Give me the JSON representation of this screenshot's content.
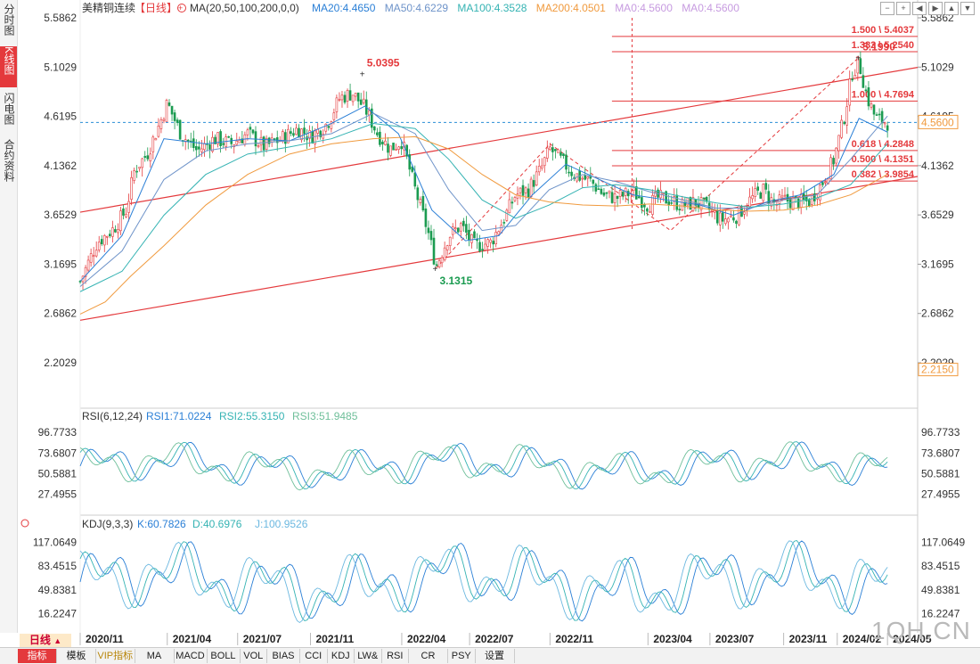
{
  "sidebar": {
    "tabs": [
      {
        "label": "分时图",
        "active": false
      },
      {
        "label": "K线图",
        "active": true
      },
      {
        "label": "闪电图",
        "active": false
      },
      {
        "label": "合约资料",
        "active": false
      }
    ]
  },
  "header": {
    "symbol": "美精铜连续",
    "period": "【日线】",
    "add_icon": "circle-plus-icon",
    "ma_label": "MA(20,50,100,200,0,0)",
    "ma20": "MA20:4.4650",
    "ma50": "MA50:4.6229",
    "ma100": "MA100:4.3528",
    "ma200": "MA200:4.0501",
    "ma0a": "MA0:4.5600",
    "ma0b": "MA0:4.5600"
  },
  "nav": {
    "buttons": [
      "minus",
      "plus",
      "left",
      "right",
      "up",
      "down"
    ]
  },
  "period_selector": {
    "label": "日线",
    "arrow": "▲"
  },
  "bottom_tabs": [
    "指标",
    "模板",
    "VIP指标",
    "MA",
    "MACD",
    "BOLL",
    "VOL",
    "BIAS",
    "CCI",
    "KDJ",
    "LW&",
    "RSI",
    "CR",
    "PSY",
    "设置"
  ],
  "watermark": "1QH.CN",
  "colors": {
    "up": "#e4393c",
    "down": "#1a9b50",
    "ma20": "#2a7fd6",
    "ma50": "#6e93c9",
    "ma100": "#35b3b3",
    "ma200": "#f09a3e",
    "channel": "#e4393c",
    "fib": "#e4393c",
    "rsi1": "#2a7fd6",
    "rsi2": "#35b3b3",
    "rsi3": "#6fbf9a",
    "k": "#2a7fd6",
    "d": "#35b3b3",
    "j": "#6cb8e0"
  },
  "chart_data": {
    "type": "candlestick",
    "price_ticks": [
      5.5862,
      5.1029,
      4.6195,
      4.1362,
      3.6529,
      3.1695,
      2.6862,
      2.2029
    ],
    "price_tick_labels": [
      "5.5862",
      "5.1029",
      "4.6195",
      "4.1362",
      "3.6529",
      "3.1695",
      "2.6862",
      "2.2029"
    ],
    "ylim": [
      2.2029,
      5.5862
    ],
    "x_labels": [
      "2020/11",
      "2021/04",
      "2021/07",
      "2021/11",
      "2022/04",
      "2022/07",
      "2022/11",
      "2023/04",
      "2023/07",
      "2023/11",
      "2024/02",
      "2024/05"
    ],
    "x_label_fraction": [
      0.0,
      0.104,
      0.188,
      0.275,
      0.384,
      0.465,
      0.561,
      0.678,
      0.752,
      0.84,
      0.904,
      0.964
    ],
    "last_price": 4.56,
    "last_price_label": "4.5600",
    "low_marker": 2.215,
    "low_marker_label": "2.2150",
    "close_path": [
      [
        0,
        3.0
      ],
      [
        0.02,
        3.38
      ],
      [
        0.04,
        3.52
      ],
      [
        0.055,
        3.7
      ],
      [
        0.065,
        4.1
      ],
      [
        0.08,
        4.25
      ],
      [
        0.095,
        4.55
      ],
      [
        0.104,
        4.75
      ],
      [
        0.12,
        4.45
      ],
      [
        0.14,
        4.28
      ],
      [
        0.16,
        4.4
      ],
      [
        0.18,
        4.35
      ],
      [
        0.2,
        4.45
      ],
      [
        0.22,
        4.32
      ],
      [
        0.24,
        4.4
      ],
      [
        0.26,
        4.5
      ],
      [
        0.275,
        4.42
      ],
      [
        0.295,
        4.55
      ],
      [
        0.31,
        4.8
      ],
      [
        0.325,
        4.85
      ],
      [
        0.34,
        4.7
      ],
      [
        0.355,
        4.45
      ],
      [
        0.37,
        4.3
      ],
      [
        0.384,
        4.38
      ],
      [
        0.4,
        3.9
      ],
      [
        0.415,
        3.5
      ],
      [
        0.425,
        3.15
      ],
      [
        0.44,
        3.45
      ],
      [
        0.455,
        3.55
      ],
      [
        0.47,
        3.35
      ],
      [
        0.49,
        3.38
      ],
      [
        0.505,
        3.6
      ],
      [
        0.52,
        3.85
      ],
      [
        0.535,
        3.9
      ],
      [
        0.55,
        4.1
      ],
      [
        0.561,
        4.3
      ],
      [
        0.575,
        4.18
      ],
      [
        0.59,
        4.05
      ],
      [
        0.61,
        3.98
      ],
      [
        0.625,
        3.85
      ],
      [
        0.64,
        3.82
      ],
      [
        0.66,
        3.88
      ],
      [
        0.678,
        3.75
      ],
      [
        0.69,
        3.82
      ],
      [
        0.705,
        3.8
      ],
      [
        0.72,
        3.74
      ],
      [
        0.735,
        3.78
      ],
      [
        0.752,
        3.7
      ],
      [
        0.765,
        3.6
      ],
      [
        0.785,
        3.65
      ],
      [
        0.8,
        3.8
      ],
      [
        0.815,
        3.9
      ],
      [
        0.83,
        3.75
      ],
      [
        0.84,
        3.8
      ],
      [
        0.855,
        3.78
      ],
      [
        0.87,
        3.78
      ],
      [
        0.885,
        3.95
      ],
      [
        0.9,
        4.2
      ],
      [
        0.912,
        4.6
      ],
      [
        0.922,
        5.05
      ],
      [
        0.93,
        5.15
      ],
      [
        0.94,
        4.8
      ],
      [
        0.95,
        4.6
      ],
      [
        0.964,
        4.56
      ]
    ],
    "ma_paths": {
      "ma20": [
        [
          0,
          3.0
        ],
        [
          0.05,
          3.45
        ],
        [
          0.1,
          4.4
        ],
        [
          0.15,
          4.35
        ],
        [
          0.2,
          4.4
        ],
        [
          0.25,
          4.38
        ],
        [
          0.3,
          4.55
        ],
        [
          0.34,
          4.72
        ],
        [
          0.38,
          4.45
        ],
        [
          0.42,
          3.7
        ],
        [
          0.46,
          3.4
        ],
        [
          0.5,
          3.45
        ],
        [
          0.54,
          3.85
        ],
        [
          0.58,
          4.15
        ],
        [
          0.62,
          4.0
        ],
        [
          0.66,
          3.85
        ],
        [
          0.7,
          3.8
        ],
        [
          0.74,
          3.75
        ],
        [
          0.78,
          3.65
        ],
        [
          0.82,
          3.78
        ],
        [
          0.86,
          3.85
        ],
        [
          0.9,
          4.05
        ],
        [
          0.93,
          4.6
        ],
        [
          0.964,
          4.465
        ]
      ],
      "ma50": [
        [
          0,
          2.95
        ],
        [
          0.05,
          3.3
        ],
        [
          0.1,
          4.0
        ],
        [
          0.15,
          4.28
        ],
        [
          0.2,
          4.35
        ],
        [
          0.25,
          4.38
        ],
        [
          0.3,
          4.45
        ],
        [
          0.35,
          4.65
        ],
        [
          0.4,
          4.45
        ],
        [
          0.44,
          3.9
        ],
        [
          0.48,
          3.5
        ],
        [
          0.52,
          3.55
        ],
        [
          0.56,
          3.9
        ],
        [
          0.6,
          4.05
        ],
        [
          0.64,
          3.98
        ],
        [
          0.68,
          3.88
        ],
        [
          0.72,
          3.8
        ],
        [
          0.76,
          3.72
        ],
        [
          0.8,
          3.72
        ],
        [
          0.84,
          3.8
        ],
        [
          0.88,
          3.85
        ],
        [
          0.92,
          4.2
        ],
        [
          0.964,
          4.6229
        ]
      ],
      "ma100": [
        [
          0,
          2.9
        ],
        [
          0.05,
          3.1
        ],
        [
          0.1,
          3.65
        ],
        [
          0.15,
          4.05
        ],
        [
          0.2,
          4.25
        ],
        [
          0.25,
          4.32
        ],
        [
          0.3,
          4.4
        ],
        [
          0.35,
          4.55
        ],
        [
          0.4,
          4.5
        ],
        [
          0.44,
          4.2
        ],
        [
          0.48,
          3.8
        ],
        [
          0.52,
          3.62
        ],
        [
          0.56,
          3.75
        ],
        [
          0.6,
          3.92
        ],
        [
          0.64,
          3.95
        ],
        [
          0.68,
          3.9
        ],
        [
          0.72,
          3.83
        ],
        [
          0.76,
          3.77
        ],
        [
          0.8,
          3.73
        ],
        [
          0.84,
          3.76
        ],
        [
          0.88,
          3.82
        ],
        [
          0.92,
          3.95
        ],
        [
          0.964,
          4.3528
        ]
      ],
      "ma200": [
        [
          0,
          2.68
        ],
        [
          0.03,
          2.8
        ],
        [
          0.06,
          3.05
        ],
        [
          0.1,
          3.35
        ],
        [
          0.15,
          3.75
        ],
        [
          0.2,
          4.05
        ],
        [
          0.25,
          4.25
        ],
        [
          0.3,
          4.35
        ],
        [
          0.35,
          4.4
        ],
        [
          0.4,
          4.42
        ],
        [
          0.44,
          4.3
        ],
        [
          0.48,
          4.05
        ],
        [
          0.52,
          3.85
        ],
        [
          0.56,
          3.78
        ],
        [
          0.6,
          3.75
        ],
        [
          0.64,
          3.74
        ],
        [
          0.68,
          3.76
        ],
        [
          0.72,
          3.74
        ],
        [
          0.76,
          3.7
        ],
        [
          0.8,
          3.69
        ],
        [
          0.84,
          3.7
        ],
        [
          0.88,
          3.75
        ],
        [
          0.92,
          3.85
        ],
        [
          0.964,
          4.0501
        ]
      ]
    },
    "channel": {
      "upper": [
        [
          0,
          3.68
        ],
        [
          1,
          5.1
        ]
      ],
      "lower": [
        [
          0,
          2.62
        ],
        [
          1,
          4.03
        ]
      ]
    },
    "zigzag": [
      [
        0.425,
        3.1315
      ],
      [
        0.561,
        4.35
      ],
      [
        0.705,
        3.5
      ],
      [
        0.93,
        5.199
      ]
    ],
    "fib_levels": [
      {
        "label": "1.500 \\ 5.4037",
        "value": 5.4037
      },
      {
        "label": "1.382 \\ 5.2540",
        "value": 5.254
      },
      {
        "label": "1.000 \\ 4.7694",
        "value": 4.7694
      },
      {
        "label": "0.618 \\ 4.2848",
        "value": 4.2848
      },
      {
        "label": "0.500 \\ 4.1351",
        "value": 4.1351
      },
      {
        "label": "0.382 \\ 3.9854",
        "value": 3.9854
      }
    ],
    "annotations": [
      {
        "text": "5.0395",
        "value": 5.0395,
        "x": 0.338,
        "color": "#e4393c"
      },
      {
        "text": "5.1990",
        "value": 5.199,
        "x": 0.93,
        "color": "#e4393c"
      },
      {
        "text": "3.1315",
        "value": 3.1315,
        "x": 0.425,
        "color": "#1a9b50"
      }
    ],
    "rsi": {
      "label": "RSI(6,12,24)",
      "rsi1": "RSI1:71.0224",
      "rsi2": "RSI2:55.3150",
      "rsi3": "RSI3:51.9485",
      "ticks": [
        96.7733,
        73.6807,
        50.5881,
        27.4955
      ],
      "tick_labels": [
        "96.7733",
        "73.6807",
        "50.5881",
        "27.4955"
      ],
      "ylim": [
        14,
        104
      ]
    },
    "kdj": {
      "label": "KDJ(9,3,3)",
      "k": "K:60.7826",
      "d": "D:40.6976",
      "j": "J:100.9526",
      "ticks": [
        117.0649,
        83.4515,
        49.8381,
        16.2247
      ],
      "tick_labels": [
        "117.0649",
        "83.4515",
        "49.8381",
        "16.2247"
      ],
      "ylim": [
        -6,
        128
      ]
    }
  }
}
